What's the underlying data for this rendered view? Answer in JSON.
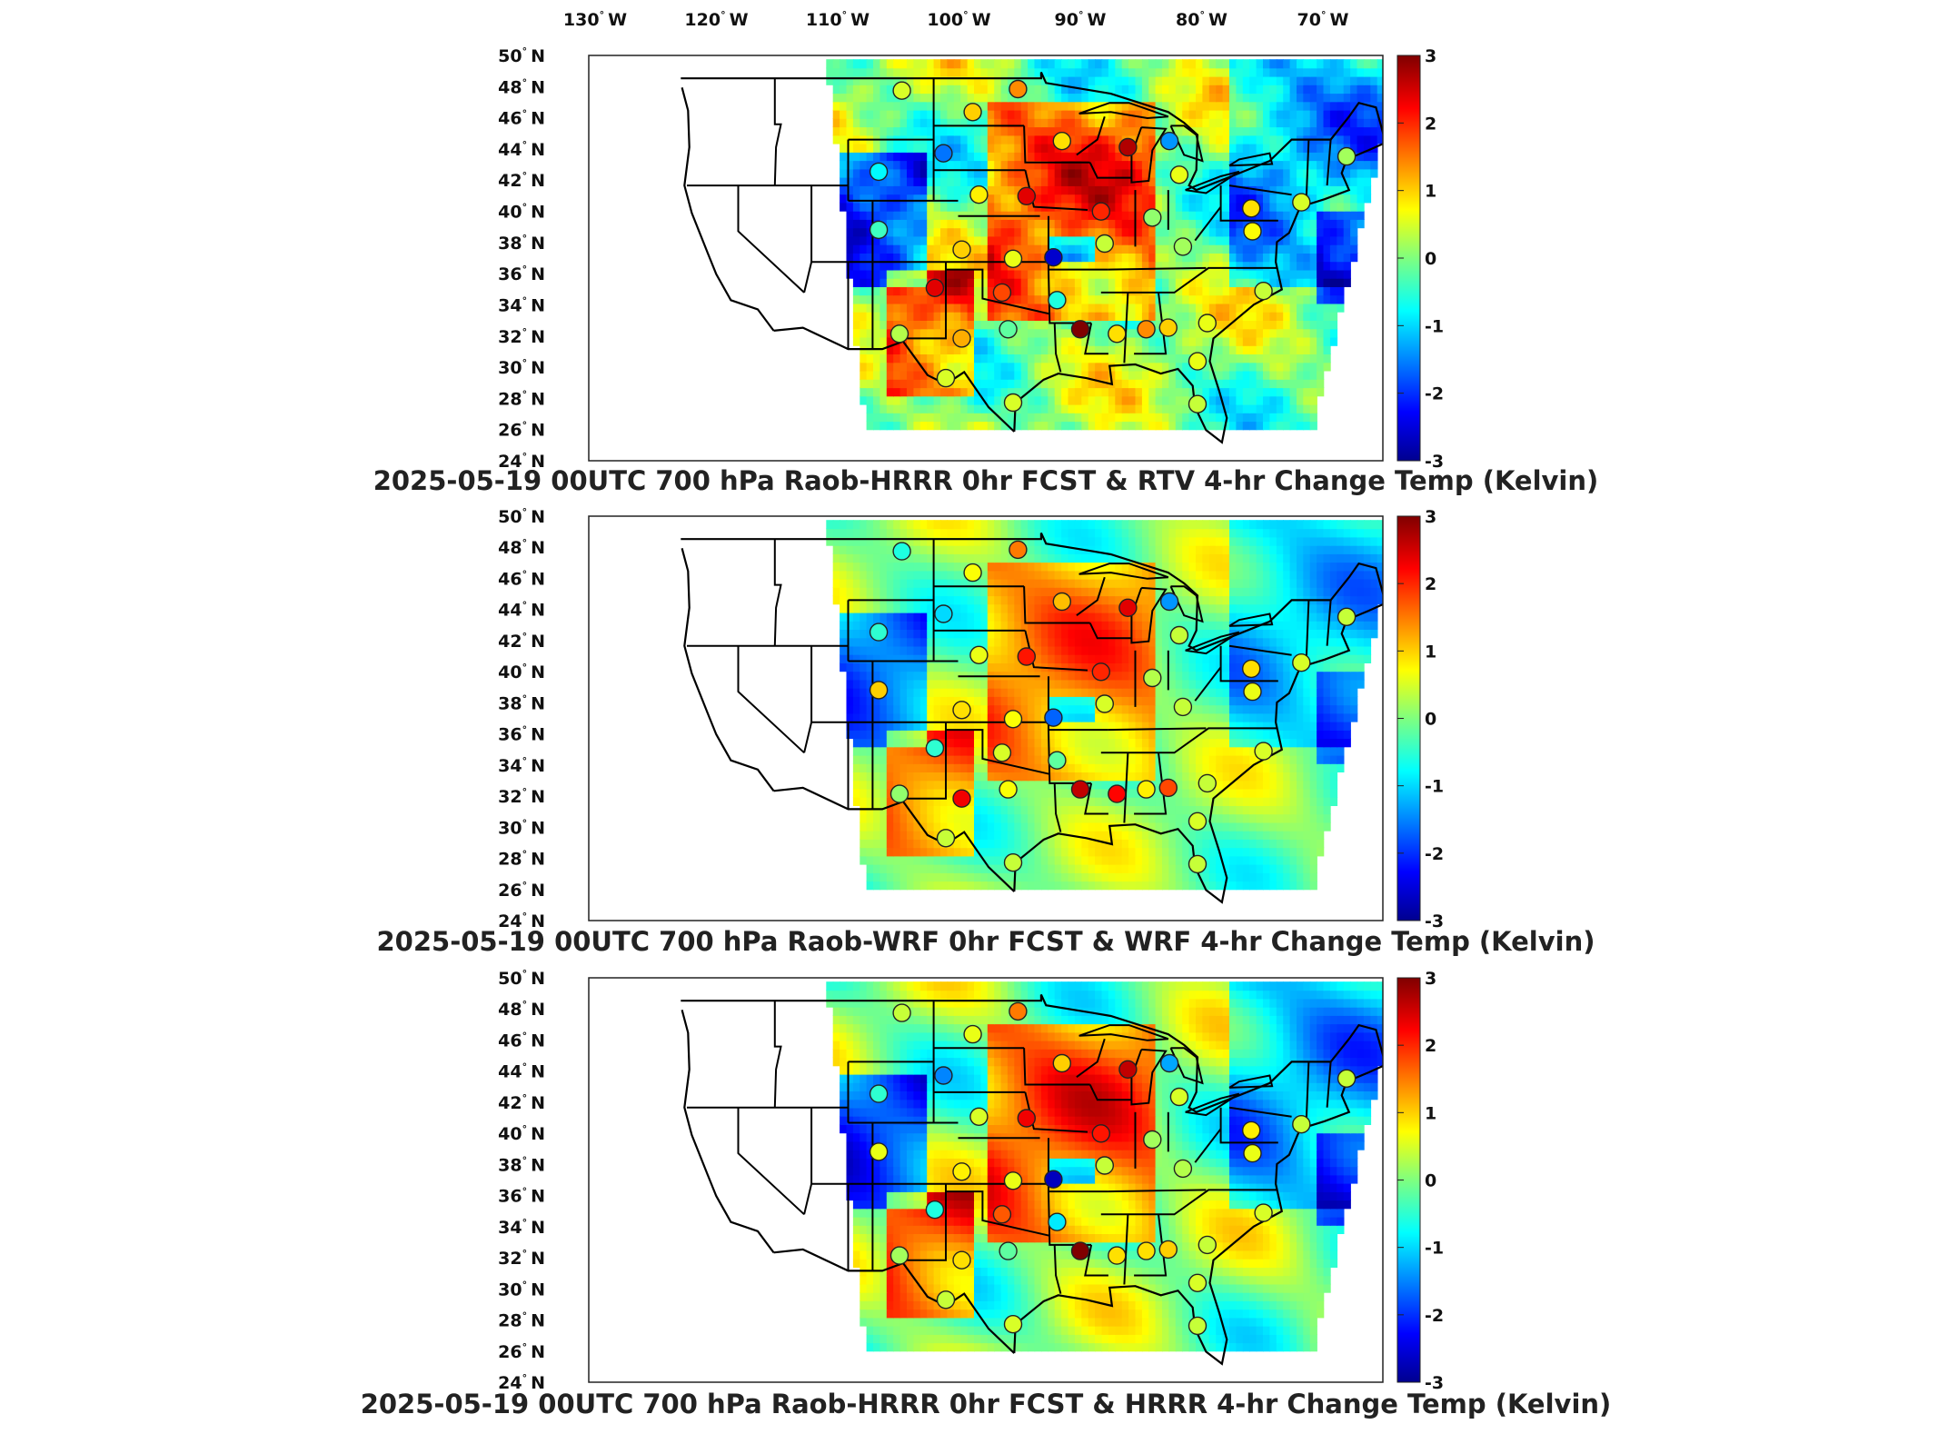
{
  "lon_labels": [
    {
      "deg": "130",
      "hemi": "W",
      "lon": -130
    },
    {
      "deg": "120",
      "hemi": "W",
      "lon": -120
    },
    {
      "deg": "110",
      "hemi": "W",
      "lon": -110
    },
    {
      "deg": "100",
      "hemi": "W",
      "lon": -100
    },
    {
      "deg": "90",
      "hemi": "W",
      "lon": -90
    },
    {
      "deg": "80",
      "hemi": "W",
      "lon": -80
    },
    {
      "deg": "70",
      "hemi": "W",
      "lon": -70
    }
  ],
  "lat_labels": [
    {
      "deg": "50",
      "hemi": "N"
    },
    {
      "deg": "48",
      "hemi": "N"
    },
    {
      "deg": "46",
      "hemi": "N"
    },
    {
      "deg": "44",
      "hemi": "N"
    },
    {
      "deg": "42",
      "hemi": "N"
    },
    {
      "deg": "40",
      "hemi": "N"
    },
    {
      "deg": "38",
      "hemi": "N"
    },
    {
      "deg": "36",
      "hemi": "N"
    },
    {
      "deg": "34",
      "hemi": "N"
    },
    {
      "deg": "32",
      "hemi": "N"
    },
    {
      "deg": "30",
      "hemi": "N"
    },
    {
      "deg": "28",
      "hemi": "N"
    },
    {
      "deg": "26",
      "hemi": "N"
    },
    {
      "deg": "24",
      "hemi": "N"
    }
  ],
  "colorbar": {
    "ticks": [
      "3",
      "2",
      "1",
      "0",
      "-1",
      "-2",
      "-3"
    ],
    "range": [
      -3,
      3
    ],
    "colors": [
      "#00008f",
      "#0000ff",
      "#00ffff",
      "#ffff00",
      "#ff0000",
      "#800000"
    ]
  },
  "panels": [
    {
      "title": "2025-05-19 00UTC 700 hPa Raob-HRRR 0hr FCST & RTV 4-hr Change Temp (Kelvin)",
      "field_style": "rtv"
    },
    {
      "title": "2025-05-19 00UTC 700 hPa Raob-WRF 0hr FCST & WRF 4-hr Change Temp (Kelvin)",
      "field_style": "wrf"
    },
    {
      "title": "2025-05-19 00UTC 700 hPa Raob-HRRR 0hr FCST & HRRR 4-hr Change Temp (Kelvin)",
      "field_style": "hrrr"
    }
  ],
  "raob_stations": [
    {
      "lon": -106.6,
      "lat": 48.2,
      "v": [
        0.5,
        -0.6,
        0.4
      ]
    },
    {
      "lon": -100.8,
      "lat": 46.8,
      "v": [
        1.0,
        0.7,
        0.6
      ]
    },
    {
      "lon": -97.1,
      "lat": 48.3,
      "v": [
        1.4,
        1.5,
        1.5
      ]
    },
    {
      "lon": -93.5,
      "lat": 44.9,
      "v": [
        0.9,
        1.1,
        1.0
      ]
    },
    {
      "lon": -88.1,
      "lat": 44.5,
      "v": [
        2.7,
        2.4,
        2.6
      ]
    },
    {
      "lon": -84.7,
      "lat": 44.9,
      "v": [
        -1.4,
        -1.4,
        -1.3
      ]
    },
    {
      "lon": -103.2,
      "lat": 44.1,
      "v": [
        -1.6,
        -1.0,
        -1.5
      ]
    },
    {
      "lon": -108.5,
      "lat": 42.9,
      "v": [
        -0.8,
        -0.5,
        -0.5
      ]
    },
    {
      "lon": -100.3,
      "lat": 41.4,
      "v": [
        0.8,
        0.6,
        0.5
      ]
    },
    {
      "lon": -96.4,
      "lat": 41.3,
      "v": [
        2.4,
        2.1,
        2.3
      ]
    },
    {
      "lon": -90.3,
      "lat": 40.3,
      "v": [
        2.0,
        2.0,
        2.1
      ]
    },
    {
      "lon": -83.9,
      "lat": 42.7,
      "v": [
        0.6,
        0.4,
        0.5
      ]
    },
    {
      "lon": -86.1,
      "lat": 39.9,
      "v": [
        0.1,
        0.3,
        0.2
      ]
    },
    {
      "lon": -78.0,
      "lat": 40.5,
      "v": [
        0.9,
        0.9,
        0.8
      ]
    },
    {
      "lon": -108.5,
      "lat": 39.1,
      "v": [
        -0.4,
        1.0,
        0.6
      ]
    },
    {
      "lon": -101.7,
      "lat": 37.8,
      "v": [
        1.0,
        0.9,
        0.8
      ]
    },
    {
      "lon": -97.5,
      "lat": 37.2,
      "v": [
        0.6,
        0.7,
        0.6
      ]
    },
    {
      "lon": -94.2,
      "lat": 37.3,
      "v": [
        -2.6,
        -1.7,
        -2.7
      ]
    },
    {
      "lon": -90.0,
      "lat": 38.2,
      "v": [
        0.4,
        0.5,
        0.4
      ]
    },
    {
      "lon": -83.6,
      "lat": 38.0,
      "v": [
        0.2,
        0.4,
        0.3
      ]
    },
    {
      "lon": -103.9,
      "lat": 35.3,
      "v": [
        2.4,
        -0.5,
        -0.6
      ]
    },
    {
      "lon": -98.4,
      "lat": 35.0,
      "v": [
        1.8,
        0.5,
        1.7
      ]
    },
    {
      "lon": -93.9,
      "lat": 34.5,
      "v": [
        -0.6,
        -0.2,
        -0.9
      ]
    },
    {
      "lon": -97.9,
      "lat": 32.6,
      "v": [
        -0.2,
        0.7,
        -0.2
      ]
    },
    {
      "lon": -101.7,
      "lat": 32.0,
      "v": [
        1.2,
        2.3,
        0.9
      ]
    },
    {
      "lon": -92.0,
      "lat": 32.6,
      "v": [
        3.0,
        2.6,
        3.0
      ]
    },
    {
      "lon": -89.0,
      "lat": 32.3,
      "v": [
        0.9,
        2.2,
        0.9
      ]
    },
    {
      "lon": -86.6,
      "lat": 32.6,
      "v": [
        1.4,
        0.8,
        0.9
      ]
    },
    {
      "lon": -84.8,
      "lat": 32.7,
      "v": [
        1.0,
        1.8,
        1.0
      ]
    },
    {
      "lon": -81.6,
      "lat": 33.0,
      "v": [
        0.6,
        0.4,
        0.4
      ]
    },
    {
      "lon": -77.0,
      "lat": 35.1,
      "v": [
        0.4,
        0.5,
        0.5
      ]
    },
    {
      "lon": -106.8,
      "lat": 32.3,
      "v": [
        0.3,
        0.1,
        0.2
      ]
    },
    {
      "lon": -103.0,
      "lat": 29.4,
      "v": [
        0.5,
        0.4,
        0.4
      ]
    },
    {
      "lon": -97.5,
      "lat": 27.8,
      "v": [
        0.5,
        0.4,
        0.5
      ]
    },
    {
      "lon": -82.4,
      "lat": 30.5,
      "v": [
        0.6,
        0.5,
        0.5
      ]
    },
    {
      "lon": -82.4,
      "lat": 27.7,
      "v": [
        0.4,
        0.4,
        0.4
      ]
    },
    {
      "lon": -77.9,
      "lat": 39.0,
      "v": [
        0.7,
        0.6,
        0.6
      ]
    },
    {
      "lon": -73.9,
      "lat": 40.9,
      "v": [
        0.5,
        0.5,
        0.4
      ]
    },
    {
      "lon": -70.2,
      "lat": 43.9,
      "v": [
        0.2,
        0.4,
        0.4
      ]
    }
  ]
}
